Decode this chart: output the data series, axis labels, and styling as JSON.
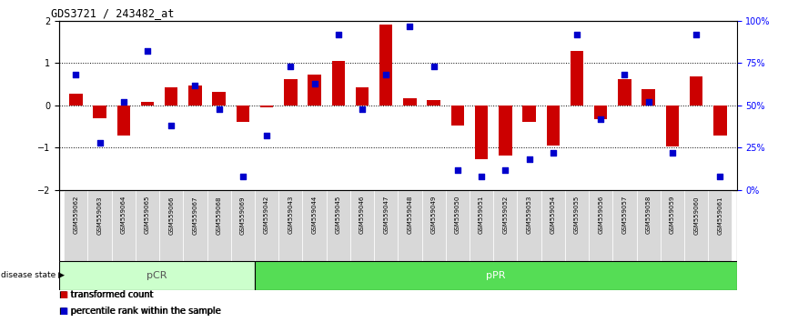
{
  "title": "GDS3721 / 243482_at",
  "samples": [
    "GSM559062",
    "GSM559063",
    "GSM559064",
    "GSM559065",
    "GSM559066",
    "GSM559067",
    "GSM559068",
    "GSM559069",
    "GSM559042",
    "GSM559043",
    "GSM559044",
    "GSM559045",
    "GSM559046",
    "GSM559047",
    "GSM559048",
    "GSM559049",
    "GSM559050",
    "GSM559051",
    "GSM559052",
    "GSM559053",
    "GSM559054",
    "GSM559055",
    "GSM559056",
    "GSM559057",
    "GSM559058",
    "GSM559059",
    "GSM559060",
    "GSM559061"
  ],
  "transformed_count": [
    0.28,
    -0.3,
    -0.72,
    0.08,
    0.42,
    0.48,
    0.32,
    -0.38,
    -0.04,
    0.62,
    0.72,
    1.05,
    0.42,
    1.92,
    0.18,
    0.12,
    -0.48,
    -1.28,
    -1.18,
    -0.38,
    -0.95,
    1.28,
    -0.32,
    0.62,
    0.38,
    -0.98,
    0.68,
    -0.72
  ],
  "percentile_rank": [
    68,
    28,
    52,
    82,
    38,
    62,
    48,
    8,
    32,
    73,
    63,
    92,
    48,
    68,
    97,
    73,
    12,
    8,
    12,
    18,
    22,
    92,
    42,
    68,
    52,
    22,
    92,
    8
  ],
  "pcr_count": 8,
  "ppr_count": 20,
  "bar_color": "#cc0000",
  "dot_color": "#0000cc",
  "ylim": [
    -2,
    2
  ],
  "y2lim": [
    0,
    100
  ],
  "yticks": [
    -2,
    -1,
    0,
    1,
    2
  ],
  "y2ticks": [
    0,
    25,
    50,
    75,
    100
  ],
  "y2ticklabels": [
    "0%",
    "25%",
    "50%",
    "75%",
    "100%"
  ],
  "dotted_lines": [
    -1,
    0,
    1
  ],
  "pcr_color_light": "#ccffcc",
  "ppr_color": "#55dd55",
  "pcr_label": "pCR",
  "ppr_label": "pPR",
  "disease_state_label": "disease state",
  "legend_bar_label": "transformed count",
  "legend_dot_label": "percentile rank within the sample",
  "tick_bg_color": "#d8d8d8"
}
